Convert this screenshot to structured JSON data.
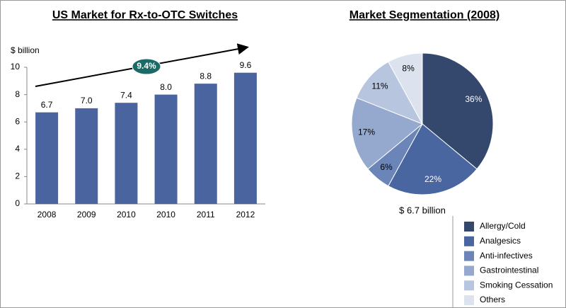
{
  "chart_data": [
    {
      "type": "bar",
      "title": "US Market for Rx-to-OTC Switches",
      "y_label": "$ billion",
      "annotation": "9.4%",
      "categories": [
        "2008",
        "2009",
        "2010",
        "2010",
        "2011",
        "2012"
      ],
      "values": [
        6.7,
        7.0,
        7.4,
        8.0,
        8.8,
        9.6
      ],
      "value_labels": [
        "6.7",
        "7.0",
        "7.4",
        "8.0",
        "8.8",
        "9.6"
      ],
      "color": "#4a64a0",
      "ylim": [
        0,
        10
      ],
      "yticks": [
        0,
        2,
        4,
        6,
        8,
        10
      ]
    },
    {
      "type": "pie",
      "title": "Market Segmentation (2008)",
      "subtitle": "$ 6.7 billion",
      "categories": [
        "Allergy/Cold",
        "Analgesics",
        "Anti-infectives",
        "Gastrointestinal",
        "Smoking Cessation",
        "Others"
      ],
      "values": [
        36,
        22,
        6,
        17,
        11,
        8
      ],
      "value_labels": [
        "36%",
        "22%",
        "6%",
        "17%",
        "11%",
        "8%"
      ],
      "colors": [
        "#34486e",
        "#4a66a0",
        "#6b85b9",
        "#95a8cd",
        "#b8c5de",
        "#dce3ef"
      ]
    }
  ]
}
